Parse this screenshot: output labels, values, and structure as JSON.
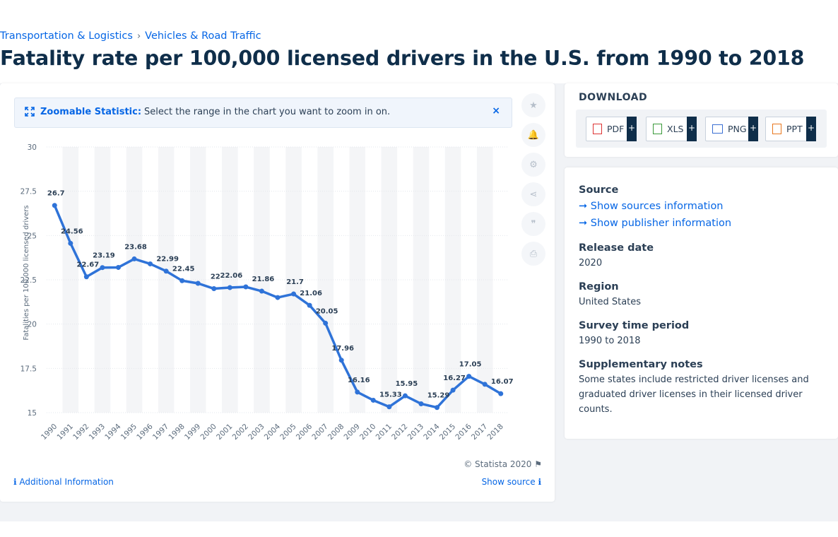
{
  "breadcrumb": {
    "item1": "Transportation & Logistics",
    "separator": "›",
    "item2": "Vehicles & Road Traffic"
  },
  "page_title": "Fatality rate per 100,000 licensed drivers in the U.S. from 1990 to 2018",
  "zoom_banner": {
    "label": "Zoomable Statistic:",
    "text": "Select the range in the chart you want to zoom in on.",
    "close": "×"
  },
  "toolbar": {
    "icons": [
      "star-icon",
      "bell-icon",
      "gear-icon",
      "share-icon",
      "quote-icon",
      "print-icon"
    ],
    "star": "★",
    "bell": "🔔",
    "gear": "⚙",
    "share": "⋖",
    "quote": "❞",
    "print": "⎙"
  },
  "footer": {
    "copyright": "© Statista 2020",
    "flag": "⚑",
    "additional_info": "Additional Information",
    "show_source": "Show source",
    "info_icon": "ℹ"
  },
  "download": {
    "title": "DOWNLOAD",
    "buttons": [
      "PDF",
      "XLS",
      "PNG",
      "PPT"
    ],
    "plus": "+"
  },
  "meta": {
    "source_heading": "Source",
    "show_sources": "Show sources information",
    "show_publisher": "Show publisher information",
    "arrow": "➞",
    "release_heading": "Release date",
    "release_value": "2020",
    "region_heading": "Region",
    "region_value": "United States",
    "period_heading": "Survey time period",
    "period_value": "1990 to 2018",
    "notes_heading": "Supplementary notes",
    "notes_value": "Some states include restricted driver licenses and graduated driver licenses in their licensed driver counts."
  },
  "colors": {
    "line": "#2f73d8",
    "link": "#0666e5",
    "title": "#0f2e4a"
  },
  "chart_data": {
    "type": "line",
    "title": "",
    "xlabel": "",
    "ylabel": "Fatalities per 100,000 licensed drivers",
    "categories": [
      "1990",
      "1991",
      "1992",
      "1993",
      "1994",
      "1995",
      "1996",
      "1997",
      "1998",
      "1999",
      "2000",
      "2001",
      "2002",
      "2003",
      "2004",
      "2005",
      "2006",
      "2007",
      "2008",
      "2009",
      "2010",
      "2011",
      "2012",
      "2013",
      "2014",
      "2015",
      "2016",
      "2017",
      "2018"
    ],
    "series": [
      {
        "name": "",
        "values": [
          26.7,
          24.56,
          22.67,
          23.19,
          23.2,
          23.68,
          23.4,
          22.99,
          22.45,
          22.3,
          22,
          22.06,
          22.1,
          21.86,
          21.5,
          21.7,
          21.06,
          20.05,
          17.96,
          16.16,
          15.7,
          15.33,
          15.95,
          15.5,
          15.29,
          16.27,
          17.05,
          16.6,
          16.07
        ]
      }
    ],
    "labels": [
      "26.7",
      "24.56",
      "22.67",
      "23.19",
      "",
      "23.68",
      "",
      "22.99",
      "22.45",
      "",
      "22",
      "22.06",
      "",
      "21.86",
      "",
      "21.7",
      "21.06",
      "20.05",
      "17.96",
      "16.16",
      "",
      "15.33",
      "15.95",
      "",
      "15.29",
      "16.27",
      "17.05",
      "",
      "16.07"
    ],
    "yticks": [
      "15",
      "17.5",
      "20",
      "22.5",
      "25",
      "27.5",
      "30"
    ],
    "ylim": [
      15,
      30
    ],
    "grid": true,
    "legend": "none"
  }
}
